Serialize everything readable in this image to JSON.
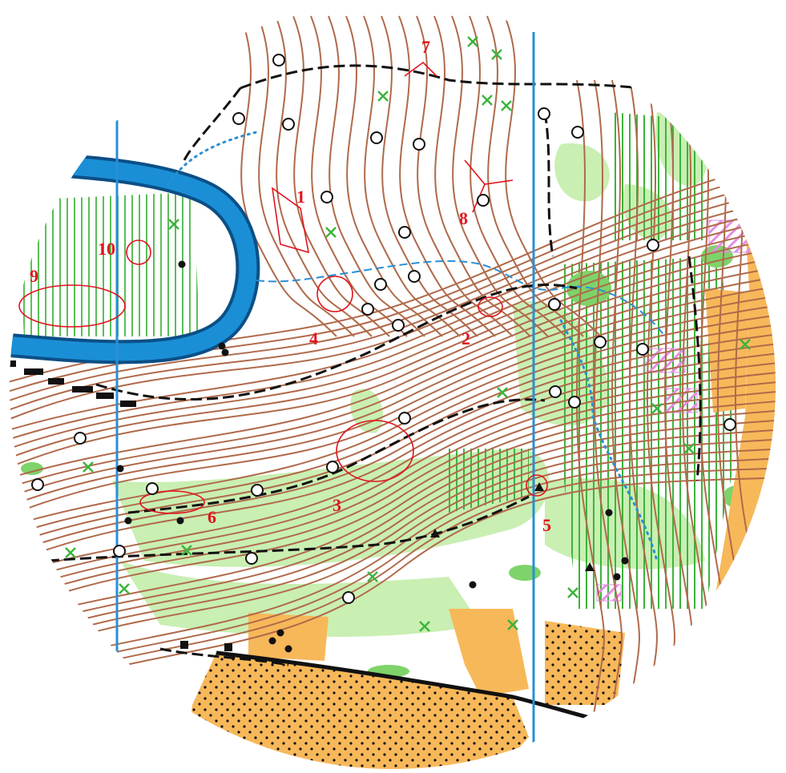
{
  "map": {
    "colors": {
      "background": "#ffffff",
      "contour": "#b06a4a",
      "forest_green": "#c9efb3",
      "forest_green_dark": "#7ed36a",
      "vegetation_line": "#3cb43c",
      "open_land": "#f7b85a",
      "water": "#1a8fd6",
      "water_dark": "#0b4f86",
      "track": "#111111",
      "north_line": "#2a8fd4",
      "annotation": "#e0141e",
      "magenta": "#e48ee6"
    },
    "control_labels": [
      {
        "label": "1",
        "icon": "control-ring-polygon"
      },
      {
        "label": "2",
        "icon": "control-ring-v"
      },
      {
        "label": "3",
        "icon": "control-ring-ellipse"
      },
      {
        "label": "4",
        "icon": "control-ring-circle"
      },
      {
        "label": "5",
        "icon": "control-ring-triangle"
      },
      {
        "label": "6",
        "icon": "control-ring-ellipse"
      },
      {
        "label": "7",
        "icon": "control-ring-caret"
      },
      {
        "label": "8",
        "icon": "control-ring-lines"
      },
      {
        "label": "9",
        "icon": "control-ring-ellipse"
      },
      {
        "label": "10",
        "icon": "control-ring-circle"
      }
    ]
  }
}
